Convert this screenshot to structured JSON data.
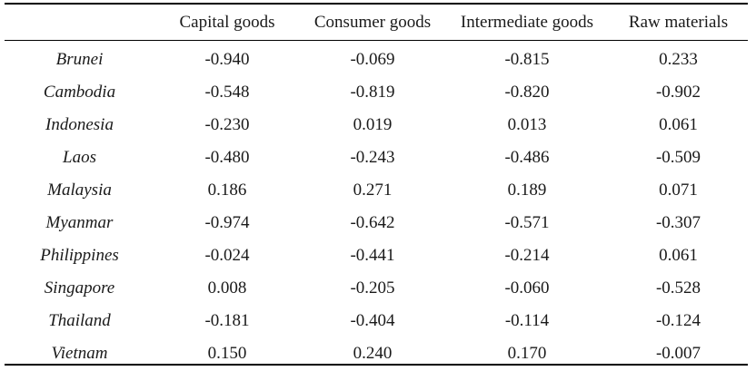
{
  "table": {
    "headers": [
      "",
      "Capital goods",
      "Consumer goods",
      "Intermediate goods",
      "Raw materials"
    ],
    "rows": [
      {
        "country": "Brunei",
        "values": [
          "-0.940",
          "-0.069",
          "-0.815",
          "0.233"
        ]
      },
      {
        "country": "Cambodia",
        "values": [
          "-0.548",
          "-0.819",
          "-0.820",
          "-0.902"
        ]
      },
      {
        "country": "Indonesia",
        "values": [
          "-0.230",
          "0.019",
          "0.013",
          "0.061"
        ]
      },
      {
        "country": "Laos",
        "values": [
          "-0.480",
          "-0.243",
          "-0.486",
          "-0.509"
        ]
      },
      {
        "country": "Malaysia",
        "values": [
          "0.186",
          "0.271",
          "0.189",
          "0.071"
        ]
      },
      {
        "country": "Myanmar",
        "values": [
          "-0.974",
          "-0.642",
          "-0.571",
          "-0.307"
        ]
      },
      {
        "country": "Philippines",
        "values": [
          "-0.024",
          "-0.441",
          "-0.214",
          "0.061"
        ]
      },
      {
        "country": "Singapore",
        "values": [
          "0.008",
          "-0.205",
          "-0.060",
          "-0.528"
        ]
      },
      {
        "country": "Thailand",
        "values": [
          "-0.181",
          "-0.404",
          "-0.114",
          "-0.124"
        ]
      },
      {
        "country": "Vietnam",
        "values": [
          "0.150",
          "0.240",
          "0.170",
          "-0.007"
        ]
      }
    ]
  }
}
